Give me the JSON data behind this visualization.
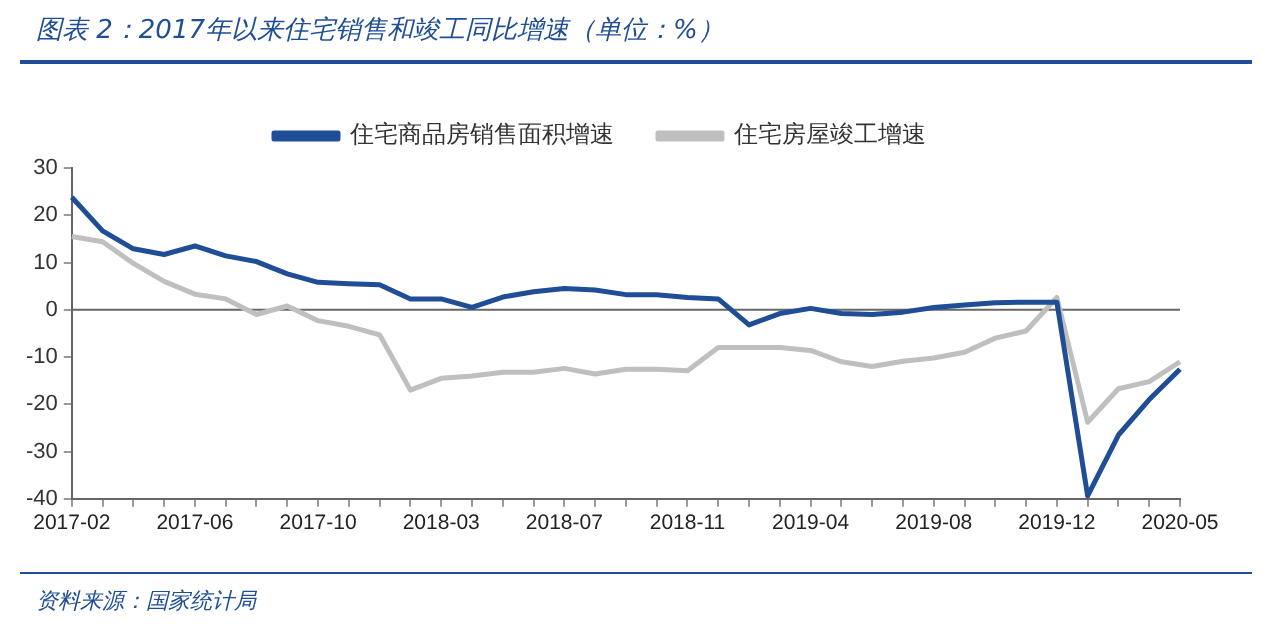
{
  "chart_data": {
    "type": "line",
    "title": "图表 2：2017年以来住宅销售和竣工同比增速（单位：%）",
    "categories": [
      "2017-02",
      null,
      null,
      null,
      "2017-06",
      null,
      null,
      null,
      "2017-10",
      null,
      null,
      null,
      "2018-03",
      null,
      null,
      null,
      "2018-07",
      null,
      null,
      null,
      "2018-11",
      null,
      null,
      null,
      "2019-04",
      null,
      null,
      null,
      "2019-08",
      null,
      null,
      null,
      "2019-12",
      null,
      null,
      null,
      "2020-05"
    ],
    "series": [
      {
        "name": "住宅商品房销售面积增速",
        "color": "#1f4e96",
        "values": [
          23.8,
          16.7,
          12.9,
          11.7,
          13.5,
          11.4,
          10.2,
          7.6,
          5.8,
          5.5,
          5.3,
          2.3,
          2.3,
          0.5,
          2.7,
          3.8,
          4.5,
          4.2,
          3.2,
          3.2,
          2.6,
          2.3,
          -3.2,
          -0.8,
          0.3,
          -0.8,
          -1,
          -0.5,
          0.5,
          1,
          1.5,
          1.6,
          1.6,
          -39.4,
          -26.5,
          -19,
          -12.6
        ]
      },
      {
        "name": "住宅房屋竣工增速",
        "color": "#bfbfbf",
        "values": [
          15.5,
          14.4,
          9.8,
          6,
          3.3,
          2.3,
          -1,
          0.8,
          -2.3,
          -3.5,
          -5.3,
          -17,
          -14.5,
          -14,
          -13.2,
          -13.2,
          -12.4,
          -13.6,
          -12.6,
          -12.6,
          -12.9,
          -8,
          -8,
          -8,
          -8.6,
          -11,
          -12,
          -10.9,
          -10.2,
          -9,
          -6,
          -4.5,
          2.6,
          -23.8,
          -16.7,
          -15.2,
          -11
        ]
      }
    ],
    "ref_lines": [
      {
        "axis": "y",
        "value": 0,
        "color": "#666666"
      }
    ],
    "ylim": [
      -40,
      30
    ],
    "yticks": [
      -40,
      -30,
      -20,
      -10,
      0,
      10,
      20,
      30
    ],
    "grid": false,
    "legend": "top",
    "marker": "none",
    "line_style": "solid",
    "annotations": [
      "资料来源：国家统计局"
    ]
  }
}
